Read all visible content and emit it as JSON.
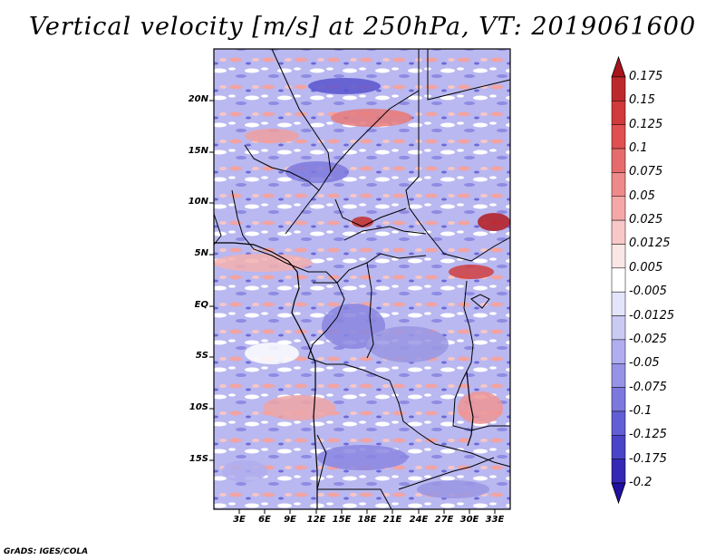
{
  "title": "Vertical velocity [m/s] at 250hPa, VT: 2019061600",
  "credit": "GrADS: IGES/COLA",
  "map": {
    "lat_labels": [
      "20N",
      "15N",
      "10N",
      "5N",
      "EQ",
      "5S",
      "10S",
      "15S"
    ],
    "lon_labels": [
      "3E",
      "6E",
      "9E",
      "12E",
      "15E",
      "18E",
      "21E",
      "24E",
      "27E",
      "30E",
      "33E"
    ]
  },
  "colorbar": {
    "labels": [
      "0.175",
      "0.15",
      "0.125",
      "0.1",
      "0.075",
      "0.05",
      "0.025",
      "0.0125",
      "0.005",
      "-0.005",
      "-0.0125",
      "-0.025",
      "-0.05",
      "-0.075",
      "-0.1",
      "-0.125",
      "-0.175",
      "-0.2"
    ],
    "colors": [
      "#a8141c",
      "#bd2a2c",
      "#d03a3a",
      "#e05050",
      "#e66c6c",
      "#ee8a8a",
      "#f4a8a8",
      "#f8c8c8",
      "#fbe6e6",
      "#ffffff",
      "#e4e4fa",
      "#cbcaf4",
      "#b0aeee",
      "#9693e6",
      "#7c78de",
      "#625ed6",
      "#4a44c8",
      "#3428b4",
      "#2010a0"
    ]
  }
}
